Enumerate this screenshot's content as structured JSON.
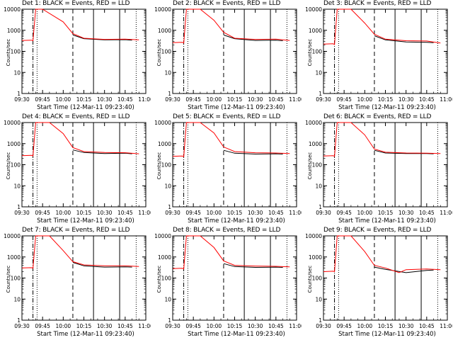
{
  "chart_data": [
    {
      "type": "line",
      "title": "Det 1: BLACK = Events, RED = LLD",
      "xlabel": "Start Time (12-Mar-11 09:23:40)",
      "ylabel": "Counts/sec",
      "yscale": "log",
      "ylim": [
        1,
        10000
      ],
      "xlim": [
        "09:30",
        "11:00"
      ],
      "xticks": [
        "09:30",
        "09:45",
        "10:00",
        "10:15",
        "10:30",
        "10:45",
        "11:00"
      ],
      "yticks": [
        "1",
        "10",
        "100",
        "1000",
        "10000"
      ],
      "series": [
        {
          "name": "BLACK",
          "color": "#000000",
          "x": [
            "10:07",
            "10:15",
            "10:30",
            "10:45",
            "10:50"
          ],
          "values": [
            600,
            400,
            350,
            360,
            340
          ]
        },
        {
          "name": "RED",
          "color": "#ff0000",
          "x": [
            "09:30",
            "09:37",
            "09:38",
            "09:40",
            "09:45",
            "10:00",
            "10:07",
            "10:15",
            "10:30",
            "10:45",
            "10:55"
          ],
          "values": [
            330,
            340,
            320,
            10000,
            10000,
            2500,
            700,
            420,
            370,
            380,
            350
          ]
        }
      ],
      "vlines": [
        {
          "x": "09:38",
          "style": "dashdot"
        },
        {
          "x": "09:41",
          "style": "dotted"
        },
        {
          "x": "10:07",
          "style": "dashed"
        },
        {
          "x": "10:22",
          "style": "solid"
        },
        {
          "x": "10:41",
          "style": "solid"
        },
        {
          "x": "10:53",
          "style": "dotted"
        }
      ]
    },
    {
      "type": "line",
      "title": "Det 2: BLACK = Events, RED = LLD",
      "xlabel": "Start Time (12-Mar-11 09:23:40)",
      "ylabel": "Counts/sec",
      "yscale": "log",
      "ylim": [
        1,
        10000
      ],
      "xlim": [
        "09:30",
        "11:00"
      ],
      "xticks": [
        "09:30",
        "09:45",
        "10:00",
        "10:15",
        "10:30",
        "10:45",
        "11:00"
      ],
      "yticks": [
        "1",
        "10",
        "100",
        "1000",
        "10000"
      ],
      "series": [
        {
          "name": "BLACK",
          "color": "#000000",
          "x": [
            "10:07",
            "10:15",
            "10:30",
            "10:45",
            "10:50"
          ],
          "values": [
            600,
            400,
            330,
            340,
            320
          ]
        },
        {
          "name": "RED",
          "color": "#ff0000",
          "x": [
            "09:30",
            "09:37",
            "09:38",
            "09:40",
            "09:50",
            "10:00",
            "10:07",
            "10:15",
            "10:30",
            "10:45",
            "10:55"
          ],
          "values": [
            260,
            270,
            250,
            10000,
            10000,
            3000,
            800,
            420,
            370,
            380,
            330
          ]
        }
      ],
      "vlines": [
        {
          "x": "09:38",
          "style": "dashdot"
        },
        {
          "x": "09:41",
          "style": "dotted"
        },
        {
          "x": "10:07",
          "style": "dashed"
        },
        {
          "x": "10:22",
          "style": "solid"
        },
        {
          "x": "10:41",
          "style": "solid"
        },
        {
          "x": "10:53",
          "style": "dotted"
        }
      ]
    },
    {
      "type": "line",
      "title": "Det 3: BLACK = Events, RED = LLD",
      "xlabel": "Start Time (12-Mar-11 09:23:40)",
      "ylabel": "Counts/sec",
      "yscale": "log",
      "ylim": [
        1,
        10000
      ],
      "xlim": [
        "09:30",
        "11:00"
      ],
      "xticks": [
        "09:30",
        "09:45",
        "10:00",
        "10:15",
        "10:30",
        "10:45",
        "11:00"
      ],
      "yticks": [
        "1",
        "10",
        "100",
        "1000",
        "10000"
      ],
      "series": [
        {
          "name": "BLACK",
          "color": "#000000",
          "x": [
            "10:07",
            "10:15",
            "10:30",
            "10:45",
            "10:50"
          ],
          "values": [
            550,
            350,
            280,
            270,
            260
          ]
        },
        {
          "name": "RED",
          "color": "#ff0000",
          "x": [
            "09:30",
            "09:37",
            "09:38",
            "09:40",
            "09:50",
            "10:00",
            "10:07",
            "10:15",
            "10:30",
            "10:45",
            "10:55"
          ],
          "values": [
            220,
            230,
            210,
            10000,
            10000,
            2200,
            650,
            380,
            320,
            310,
            250
          ]
        }
      ],
      "vlines": [
        {
          "x": "09:38",
          "style": "dashdot"
        },
        {
          "x": "09:41",
          "style": "dotted"
        },
        {
          "x": "10:07",
          "style": "dashed"
        },
        {
          "x": "10:22",
          "style": "solid"
        },
        {
          "x": "10:41",
          "style": "solid"
        },
        {
          "x": "10:53",
          "style": "dotted"
        }
      ]
    },
    {
      "type": "line",
      "title": "Det 4: BLACK = Events, RED = LLD",
      "xlabel": "Start Time (12-Mar-11 09:23:40)",
      "ylabel": "Counts/sec",
      "yscale": "log",
      "ylim": [
        1,
        10000
      ],
      "xlim": [
        "09:30",
        "11:00"
      ],
      "xticks": [
        "09:30",
        "09:45",
        "10:00",
        "10:15",
        "10:30",
        "10:45",
        "11:00"
      ],
      "yticks": [
        "1",
        "10",
        "100",
        "1000",
        "10000"
      ],
      "series": [
        {
          "name": "BLACK",
          "color": "#000000",
          "x": [
            "10:07",
            "10:15",
            "10:30",
            "10:45",
            "10:50"
          ],
          "values": [
            500,
            380,
            340,
            350,
            330
          ]
        },
        {
          "name": "RED",
          "color": "#ff0000",
          "x": [
            "09:30",
            "09:37",
            "09:38",
            "09:40",
            "09:50",
            "10:00",
            "10:07",
            "10:15",
            "10:30",
            "10:45",
            "10:55"
          ],
          "values": [
            270,
            280,
            260,
            10000,
            10000,
            3000,
            650,
            420,
            380,
            370,
            330
          ]
        }
      ],
      "vlines": [
        {
          "x": "09:38",
          "style": "dashdot"
        },
        {
          "x": "09:41",
          "style": "dotted"
        },
        {
          "x": "10:07",
          "style": "dashed"
        },
        {
          "x": "10:22",
          "style": "solid"
        },
        {
          "x": "10:41",
          "style": "solid"
        },
        {
          "x": "10:53",
          "style": "dotted"
        }
      ]
    },
    {
      "type": "line",
      "title": "Det 5: BLACK = Events, RED = LLD",
      "xlabel": "Start Time (12-Mar-11 09:23:40)",
      "ylabel": "Counts/sec",
      "yscale": "log",
      "ylim": [
        1,
        10000
      ],
      "xlim": [
        "09:30",
        "11:00"
      ],
      "xticks": [
        "09:30",
        "09:45",
        "10:00",
        "10:15",
        "10:30",
        "10:45",
        "11:00"
      ],
      "yticks": [
        "1",
        "10",
        "100",
        "1000",
        "10000"
      ],
      "series": [
        {
          "name": "BLACK",
          "color": "#000000",
          "x": [
            "10:07",
            "10:15",
            "10:30",
            "10:45",
            "10:50"
          ],
          "values": [
            480,
            350,
            320,
            330,
            320
          ]
        },
        {
          "name": "RED",
          "color": "#ff0000",
          "x": [
            "09:30",
            "09:37",
            "09:38",
            "09:40",
            "09:50",
            "10:00",
            "10:07",
            "10:15",
            "10:30",
            "10:45",
            "10:55"
          ],
          "values": [
            250,
            260,
            240,
            10000,
            10000,
            3200,
            700,
            420,
            370,
            360,
            340
          ]
        }
      ],
      "vlines": [
        {
          "x": "09:38",
          "style": "dashdot"
        },
        {
          "x": "09:41",
          "style": "dotted"
        },
        {
          "x": "10:07",
          "style": "dashed"
        },
        {
          "x": "10:22",
          "style": "solid"
        },
        {
          "x": "10:41",
          "style": "solid"
        },
        {
          "x": "10:53",
          "style": "dotted"
        }
      ]
    },
    {
      "type": "line",
      "title": "Det 6: BLACK = Events, RED = LLD",
      "xlabel": "Start Time (12-Mar-11 09:23:40)",
      "ylabel": "Counts/sec",
      "yscale": "log",
      "ylim": [
        1,
        10000
      ],
      "xlim": [
        "09:30",
        "11:00"
      ],
      "xticks": [
        "09:30",
        "09:45",
        "10:00",
        "10:15",
        "10:30",
        "10:45",
        "11:00"
      ],
      "yticks": [
        "1",
        "10",
        "100",
        "1000",
        "10000"
      ],
      "series": [
        {
          "name": "BLACK",
          "color": "#000000",
          "x": [
            "10:07",
            "10:15",
            "10:30",
            "10:45",
            "10:50"
          ],
          "values": [
            480,
            360,
            340,
            340,
            330
          ]
        },
        {
          "name": "RED",
          "color": "#ff0000",
          "x": [
            "09:30",
            "09:37",
            "09:38",
            "09:40",
            "09:50",
            "10:00",
            "10:07",
            "10:15",
            "10:30",
            "10:45",
            "10:55"
          ],
          "values": [
            260,
            270,
            250,
            10000,
            10000,
            2600,
            550,
            390,
            360,
            350,
            340
          ]
        }
      ],
      "vlines": [
        {
          "x": "09:38",
          "style": "dashdot"
        },
        {
          "x": "09:41",
          "style": "dotted"
        },
        {
          "x": "10:07",
          "style": "dashed"
        },
        {
          "x": "10:22",
          "style": "solid"
        },
        {
          "x": "10:41",
          "style": "solid"
        },
        {
          "x": "10:53",
          "style": "dotted"
        }
      ]
    },
    {
      "type": "line",
      "title": "Det 7: BLACK = Events, RED = LLD",
      "xlabel": "Start Time (12-Mar-11 09:23:40)",
      "ylabel": "Counts/sec",
      "yscale": "log",
      "ylim": [
        1,
        10000
      ],
      "xlim": [
        "09:30",
        "11:00"
      ],
      "xticks": [
        "09:30",
        "09:45",
        "10:00",
        "10:15",
        "10:30",
        "10:45",
        "11:00"
      ],
      "yticks": [
        "1",
        "10",
        "100",
        "1000",
        "10000"
      ],
      "series": [
        {
          "name": "BLACK",
          "color": "#000000",
          "x": [
            "10:07",
            "10:15",
            "10:30",
            "10:45",
            "10:50"
          ],
          "values": [
            550,
            380,
            330,
            340,
            330
          ]
        },
        {
          "name": "RED",
          "color": "#ff0000",
          "x": [
            "09:30",
            "09:37",
            "09:38",
            "09:40",
            "09:50",
            "10:00",
            "10:07",
            "10:15",
            "10:30",
            "10:45",
            "10:55"
          ],
          "values": [
            300,
            310,
            290,
            10000,
            10000,
            2000,
            600,
            420,
            380,
            380,
            350
          ]
        }
      ],
      "vlines": [
        {
          "x": "09:38",
          "style": "dashdot"
        },
        {
          "x": "09:41",
          "style": "dotted"
        },
        {
          "x": "10:07",
          "style": "dashed"
        },
        {
          "x": "10:22",
          "style": "solid"
        },
        {
          "x": "10:41",
          "style": "solid"
        },
        {
          "x": "10:53",
          "style": "dotted"
        }
      ]
    },
    {
      "type": "line",
      "title": "Det 8: BLACK = Events, RED = LLD",
      "xlabel": "Start Time (12-Mar-11 09:23:40)",
      "ylabel": "Counts/sec",
      "yscale": "log",
      "ylim": [
        1,
        10000
      ],
      "xlim": [
        "09:30",
        "11:00"
      ],
      "xticks": [
        "09:30",
        "09:45",
        "10:00",
        "10:15",
        "10:30",
        "10:45",
        "11:00"
      ],
      "yticks": [
        "1",
        "10",
        "100",
        "1000",
        "10000"
      ],
      "series": [
        {
          "name": "BLACK",
          "color": "#000000",
          "x": [
            "10:07",
            "10:15",
            "10:30",
            "10:45",
            "10:50"
          ],
          "values": [
            480,
            350,
            320,
            330,
            320
          ]
        },
        {
          "name": "RED",
          "color": "#ff0000",
          "x": [
            "09:30",
            "09:37",
            "09:38",
            "09:40",
            "09:50",
            "10:00",
            "10:07",
            "10:15",
            "10:30",
            "10:45",
            "10:55"
          ],
          "values": [
            280,
            290,
            270,
            10000,
            10000,
            2800,
            650,
            400,
            370,
            360,
            340
          ]
        }
      ],
      "vlines": [
        {
          "x": "09:38",
          "style": "dashdot"
        },
        {
          "x": "09:41",
          "style": "dotted"
        },
        {
          "x": "10:07",
          "style": "dashed"
        },
        {
          "x": "10:22",
          "style": "solid"
        },
        {
          "x": "10:41",
          "style": "solid"
        },
        {
          "x": "10:53",
          "style": "dotted"
        }
      ]
    },
    {
      "type": "line",
      "title": "Det 9: BLACK = Events, RED = LLD",
      "xlabel": "Start Time (12-Mar-11 09:23:40)",
      "ylabel": "Counts/sec",
      "yscale": "log",
      "ylim": [
        1,
        10000
      ],
      "xlim": [
        "09:30",
        "11:00"
      ],
      "xticks": [
        "09:30",
        "09:45",
        "10:00",
        "10:15",
        "10:30",
        "10:45",
        "11:00"
      ],
      "yticks": [
        "1",
        "10",
        "100",
        "1000",
        "10000"
      ],
      "series": [
        {
          "name": "BLACK",
          "color": "#000000",
          "x": [
            "10:07",
            "10:15",
            "10:30",
            "10:45",
            "10:50"
          ],
          "values": [
            330,
            260,
            180,
            230,
            240
          ]
        },
        {
          "name": "RED",
          "color": "#ff0000",
          "x": [
            "09:30",
            "09:37",
            "09:38",
            "09:40",
            "09:50",
            "10:00",
            "10:07",
            "10:15",
            "10:25",
            "10:30",
            "10:45",
            "10:55"
          ],
          "values": [
            200,
            210,
            200,
            10000,
            10000,
            1800,
            400,
            300,
            180,
            250,
            270,
            250
          ]
        }
      ],
      "vlines": [
        {
          "x": "09:38",
          "style": "dashdot"
        },
        {
          "x": "09:41",
          "style": "dotted"
        },
        {
          "x": "10:07",
          "style": "dashed"
        },
        {
          "x": "10:22",
          "style": "solid"
        },
        {
          "x": "10:41",
          "style": "solid"
        },
        {
          "x": "10:53",
          "style": "dotted"
        }
      ]
    }
  ]
}
